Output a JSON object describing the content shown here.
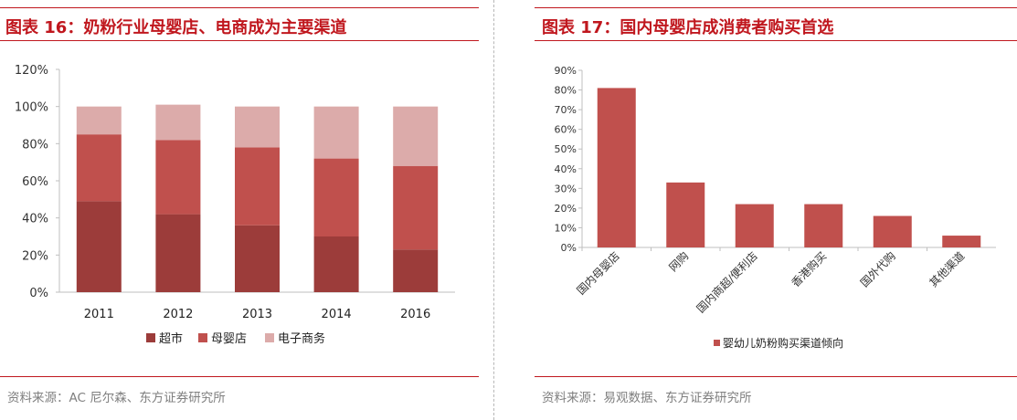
{
  "left": {
    "title": "图表 16：奶粉行业母婴店、电商成为主要渠道",
    "source": "资料来源：AC 尼尔森、东方证券研究所"
  },
  "right": {
    "title": "图表 17：国内母婴店成消费者购买首选",
    "source": "资料来源：易观数据、东方证券研究所"
  },
  "chart_data": [
    {
      "type": "bar",
      "stacked": true,
      "categories": [
        "2011",
        "2012",
        "2013",
        "2014",
        "2016"
      ],
      "series": [
        {
          "name": "超市",
          "color": "#9c3c3a",
          "values": [
            49,
            42,
            36,
            30,
            23
          ]
        },
        {
          "name": "母婴店",
          "color": "#c0504d",
          "values": [
            36,
            40,
            42,
            42,
            45
          ]
        },
        {
          "name": "电子商务",
          "color": "#dcabaa",
          "values": [
            15,
            19,
            22,
            28,
            32
          ]
        }
      ],
      "ylim": [
        0,
        120
      ],
      "yticks": [
        0,
        20,
        40,
        60,
        80,
        100,
        120
      ],
      "ytick_format": "percent",
      "legend": "bottom",
      "grid": false
    },
    {
      "type": "bar",
      "categories": [
        "国内母婴店",
        "网购",
        "国内商超/便利店",
        "香港购买",
        "国外代购",
        "其他渠道"
      ],
      "series": [
        {
          "name": "婴幼儿奶粉购买渠道倾向",
          "color": "#c0504d",
          "values": [
            81,
            33,
            22,
            22,
            16,
            6
          ]
        }
      ],
      "ylim": [
        0,
        90
      ],
      "yticks": [
        0,
        10,
        20,
        30,
        40,
        50,
        60,
        70,
        80,
        90
      ],
      "ytick_format": "percent",
      "legend": "bottom",
      "grid": false
    }
  ]
}
